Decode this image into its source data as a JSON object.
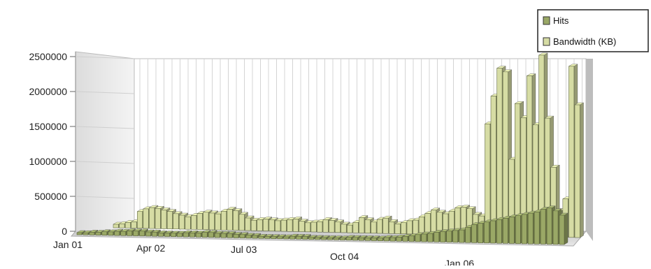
{
  "chart_data": {
    "type": "bar",
    "title": "",
    "xlabel": "",
    "ylabel": "",
    "ylim": [
      0,
      2500000
    ],
    "y_ticks": [
      "2500000",
      "2000000",
      "1500000",
      "1000000",
      "500000",
      "0"
    ],
    "x_tick_labels": [
      "Jan 01",
      "Apr 02",
      "Jul 03",
      "Oct 04",
      "Jan 06"
    ],
    "grid": true,
    "legend_position": "top-right",
    "series": [
      {
        "name": "Hits",
        "color": "#9aa866",
        "values": [
          30000,
          30000,
          40000,
          40000,
          50000,
          50000,
          60000,
          60000,
          70000,
          70000,
          70000,
          60000,
          60000,
          50000,
          50000,
          50000,
          50000,
          60000,
          60000,
          60000,
          70000,
          70000,
          60000,
          60000,
          60000,
          50000,
          50000,
          40000,
          40000,
          30000,
          30000,
          30000,
          30000,
          30000,
          40000,
          40000,
          40000,
          30000,
          30000,
          30000,
          30000,
          30000,
          30000,
          40000,
          40000,
          40000,
          40000,
          40000,
          40000,
          50000,
          50000,
          60000,
          70000,
          80000,
          100000,
          110000,
          120000,
          140000,
          150000,
          160000,
          170000,
          180000,
          220000,
          260000,
          280000,
          300000,
          320000,
          340000,
          360000,
          380000,
          400000,
          420000,
          440000,
          460000,
          500000,
          520000,
          480000,
          420000
        ]
      },
      {
        "name": "Bandwidth (KB)",
        "color": "#d6dca4",
        "values": [
          50000,
          60000,
          80000,
          90000,
          240000,
          280000,
          300000,
          290000,
          270000,
          250000,
          220000,
          200000,
          180000,
          200000,
          230000,
          250000,
          240000,
          230000,
          270000,
          300000,
          280000,
          230000,
          180000,
          150000,
          160000,
          170000,
          160000,
          150000,
          160000,
          170000,
          180000,
          150000,
          130000,
          140000,
          150000,
          180000,
          170000,
          150000,
          120000,
          110000,
          150000,
          220000,
          190000,
          160000,
          200000,
          220000,
          170000,
          140000,
          160000,
          190000,
          200000,
          250000,
          300000,
          350000,
          320000,
          300000,
          340000,
          390000,
          400000,
          380000,
          300000,
          280000,
          1600000,
          2000000,
          2400000,
          2350000,
          1100000,
          1900000,
          1700000,
          2300000,
          1600000,
          2600000,
          1700000,
          1000000,
          380000,
          550000,
          2450000,
          1900000
        ]
      }
    ]
  }
}
